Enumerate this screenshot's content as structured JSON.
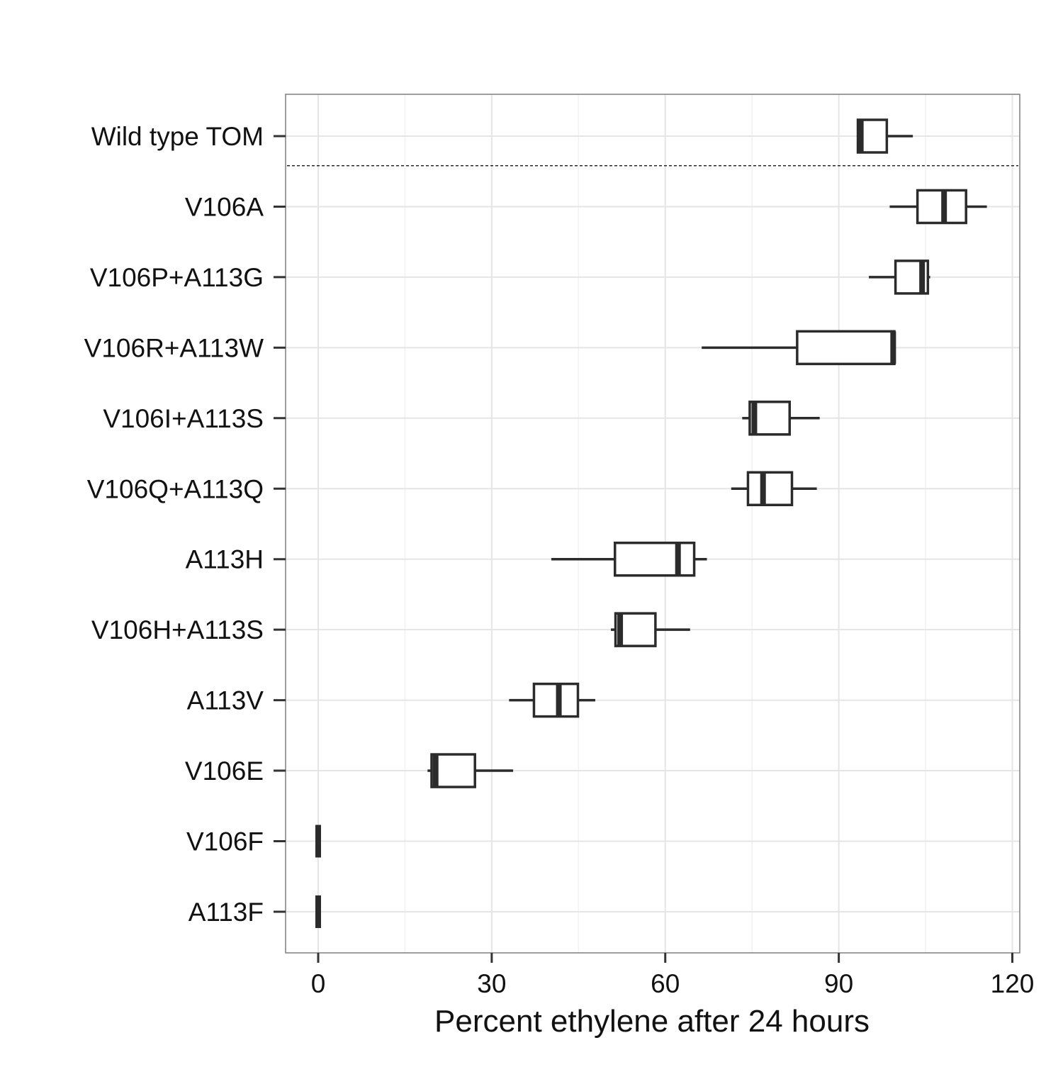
{
  "chart_data": {
    "type": "boxplot",
    "orientation": "horizontal",
    "xlabel": "Percent ethylene after 24 hours",
    "ylabel": "",
    "xlim": [
      -5.5,
      121.5
    ],
    "xticks": [
      0,
      30,
      60,
      90,
      120
    ],
    "grid": true,
    "categories": [
      "Wild type TOM",
      "V106A",
      "V106P+A113G",
      "V106R+A113W",
      "V106I+A113S",
      "V106Q+A113Q",
      "A113H",
      "V106H+A113S",
      "A113V",
      "V106E",
      "V106F",
      "A113F"
    ],
    "boxes": [
      {
        "category": "Wild type TOM",
        "min": 93.3,
        "q1": 93.3,
        "median": 93.8,
        "q3": 98.3,
        "max": 102.8
      },
      {
        "category": "V106A",
        "min": 98.8,
        "q1": 103.6,
        "median": 108.2,
        "q3": 112.0,
        "max": 115.6
      },
      {
        "category": "V106P+A113G",
        "min": 95.2,
        "q1": 99.8,
        "median": 104.4,
        "q3": 105.4,
        "max": 105.8
      },
      {
        "category": "V106R+A113W",
        "min": 66.3,
        "q1": 82.8,
        "median": 99.4,
        "q3": 99.6,
        "max": 99.6
      },
      {
        "category": "V106I+A113S",
        "min": 73.3,
        "q1": 74.6,
        "median": 75.4,
        "q3": 81.5,
        "max": 86.7
      },
      {
        "category": "V106Q+A113Q",
        "min": 71.4,
        "q1": 74.3,
        "median": 76.9,
        "q3": 81.9,
        "max": 86.2
      },
      {
        "category": "A113H",
        "min": 40.3,
        "q1": 51.3,
        "median": 62.2,
        "q3": 65.0,
        "max": 67.2
      },
      {
        "category": "V106H+A113S",
        "min": 50.6,
        "q1": 51.4,
        "median": 52.2,
        "q3": 58.3,
        "max": 64.3
      },
      {
        "category": "A113V",
        "min": 33.0,
        "q1": 37.3,
        "median": 41.6,
        "q3": 44.9,
        "max": 47.9
      },
      {
        "category": "V106E",
        "min": 18.9,
        "q1": 19.6,
        "median": 20.3,
        "q3": 27.1,
        "max": 33.7
      },
      {
        "category": "V106F",
        "min": 0,
        "q1": 0,
        "median": 0,
        "q3": 0,
        "max": 0
      },
      {
        "category": "A113F",
        "min": 0,
        "q1": 0,
        "median": 0,
        "q3": 0,
        "max": 0
      }
    ],
    "separator_after_category": "Wild type TOM",
    "colors": {
      "box_stroke": "#2b2b2b",
      "grid_major": "#e5e5e5",
      "grid_minor": "#f2f2f2",
      "panel_border": "#7f7f7f"
    }
  }
}
